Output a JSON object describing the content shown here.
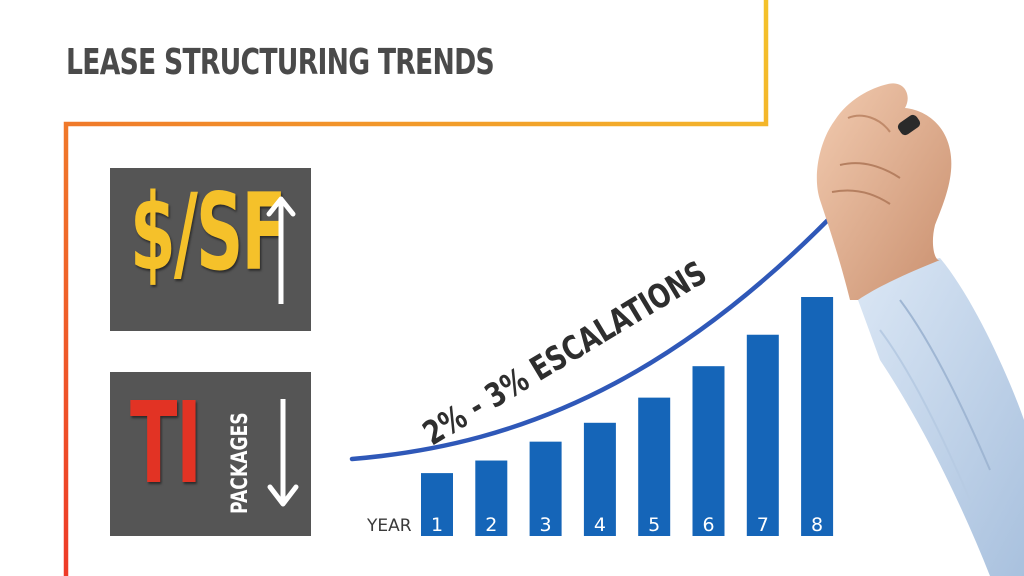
{
  "title": "LEASE STRUCTURING TRENDS",
  "panels": {
    "price": {
      "label": "$/SF",
      "direction": "up"
    },
    "ti": {
      "label": "TI",
      "sublabel": "PACKAGES",
      "direction": "down"
    }
  },
  "colors": {
    "frame_start": "#ee3a28",
    "frame_end": "#f4c22b",
    "panel_bg": "#555555",
    "price_text": "#f5c12a",
    "ti_text": "#e23324",
    "bar": "#1565b8",
    "trend_line": "#2f58b8",
    "title_text": "#4a4a4a"
  },
  "chart_data": {
    "type": "bar",
    "xlabel": "YEAR",
    "categories": [
      "1",
      "2",
      "3",
      "4",
      "5",
      "6",
      "7",
      "8"
    ],
    "values": [
      1.0,
      1.2,
      1.5,
      1.8,
      2.2,
      2.7,
      3.2,
      3.8
    ],
    "annotation": "2% - 3% ESCALATIONS",
    "trend_line": "rising curve with arrow"
  }
}
